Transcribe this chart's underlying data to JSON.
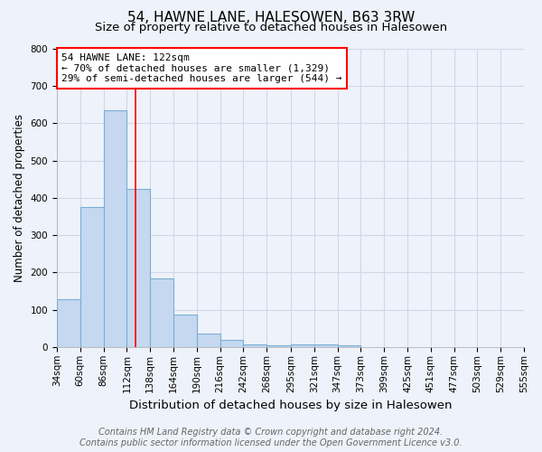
{
  "title": "54, HAWNE LANE, HALESOWEN, B63 3RW",
  "subtitle": "Size of property relative to detached houses in Halesowen",
  "xlabel": "Distribution of detached houses by size in Halesowen",
  "ylabel": "Number of detached properties",
  "bins": [
    34,
    60,
    86,
    112,
    138,
    164,
    190,
    216,
    242,
    268,
    295,
    321,
    347,
    373,
    399,
    425,
    451,
    477,
    503,
    529,
    555
  ],
  "counts": [
    128,
    375,
    635,
    425,
    185,
    88,
    35,
    18,
    8,
    5,
    8,
    7,
    5,
    0,
    0,
    0,
    0,
    0,
    0,
    0
  ],
  "bar_color": "#c5d8ef",
  "bar_edge_color": "#7aafd4",
  "red_line_x": 122,
  "ylim": [
    0,
    800
  ],
  "yticks": [
    0,
    100,
    200,
    300,
    400,
    500,
    600,
    700,
    800
  ],
  "annotation_text": "54 HAWNE LANE: 122sqm\n← 70% of detached houses are smaller (1,329)\n29% of semi-detached houses are larger (544) →",
  "annotation_box_color": "white",
  "annotation_box_edge_color": "red",
  "footer_line1": "Contains HM Land Registry data © Crown copyright and database right 2024.",
  "footer_line2": "Contains public sector information licensed under the Open Government Licence v3.0.",
  "title_fontsize": 11,
  "subtitle_fontsize": 9.5,
  "xlabel_fontsize": 9.5,
  "ylabel_fontsize": 8.5,
  "tick_fontsize": 7.5,
  "annotation_fontsize": 8,
  "footer_fontsize": 7,
  "background_color": "#eef2fa",
  "grid_color": "#d0d8e8"
}
